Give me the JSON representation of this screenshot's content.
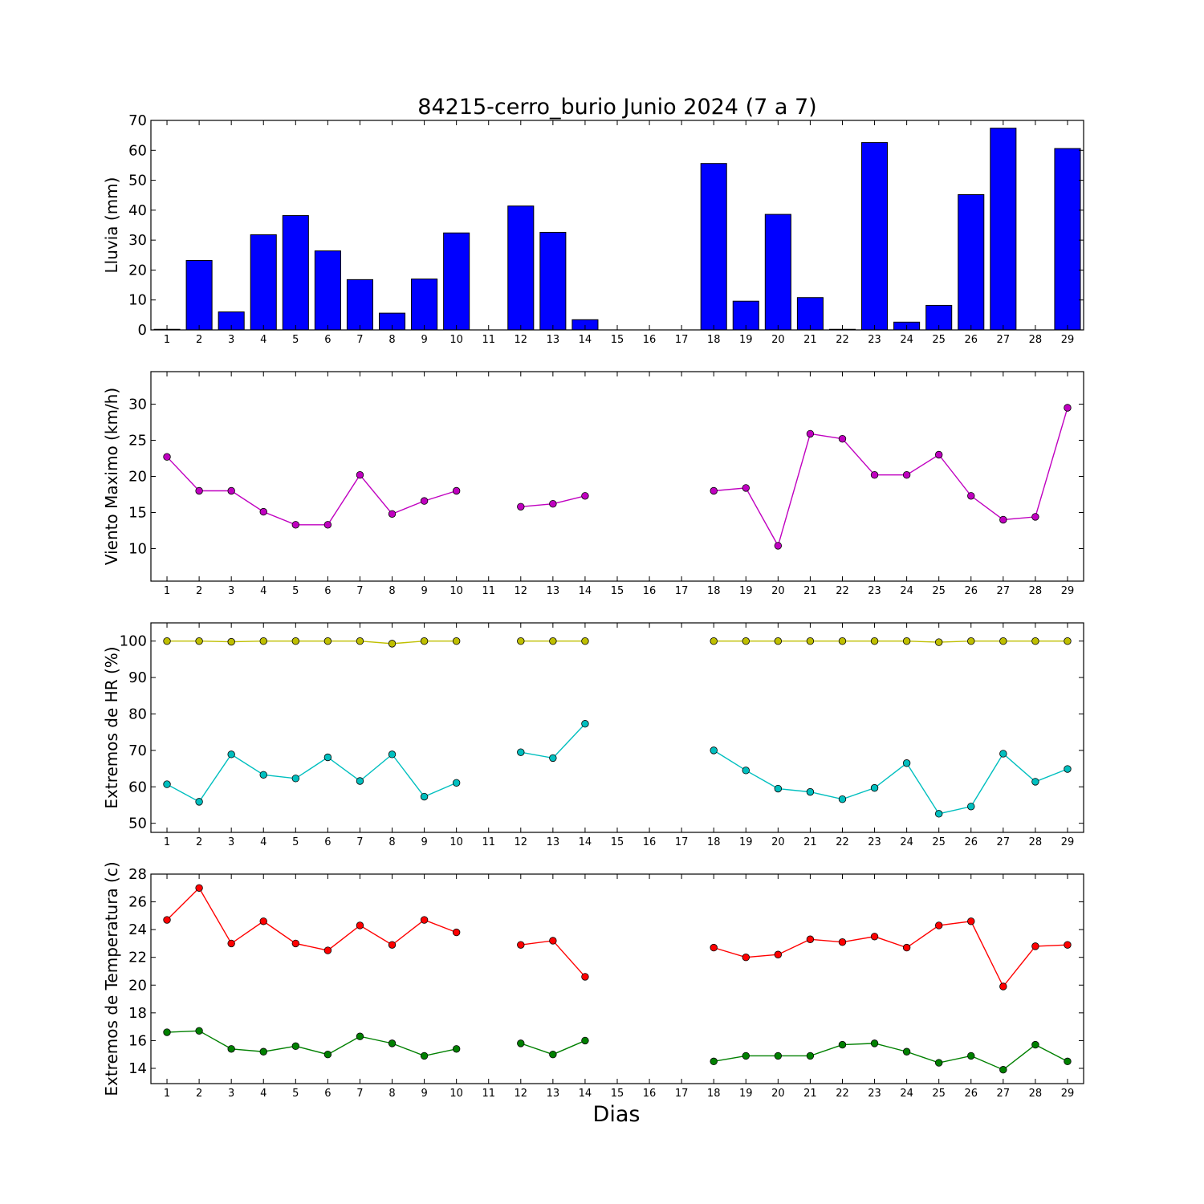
{
  "figure": {
    "title": "84215-cerro_burio Junio 2024  (7 a 7)",
    "xlabel": "Dias"
  },
  "chart_data": [
    {
      "type": "bar",
      "ylabel": "Lluvia (mm)",
      "ylim": [
        0,
        70
      ],
      "yticks": [
        0,
        10,
        20,
        30,
        40,
        50,
        60,
        70
      ],
      "x": [
        1,
        2,
        3,
        4,
        5,
        6,
        7,
        8,
        9,
        10,
        11,
        12,
        13,
        14,
        15,
        16,
        17,
        18,
        19,
        20,
        21,
        22,
        23,
        24,
        25,
        26,
        27,
        28,
        29
      ],
      "xticks": [
        "1",
        "2",
        "3",
        "4",
        "5",
        "6",
        "7",
        "8",
        "9",
        "10",
        "11",
        "12",
        "13",
        "14",
        "15",
        "16",
        "17",
        "18",
        "19",
        "20",
        "21",
        "22",
        "23",
        "24",
        "25",
        "26",
        "27",
        "28",
        "29"
      ],
      "series": [
        {
          "color": "#0000ff",
          "values": [
            0.2,
            23.2,
            6.0,
            31.8,
            38.2,
            26.4,
            16.8,
            5.6,
            17.0,
            32.4,
            0,
            41.4,
            32.6,
            3.4,
            0,
            0,
            0,
            55.6,
            9.6,
            38.6,
            10.8,
            0.2,
            62.6,
            2.6,
            8.2,
            45.2,
            67.4,
            0,
            60.6
          ]
        }
      ],
      "grid": false
    },
    {
      "type": "line",
      "ylabel": "Viento Maximo (km/h)",
      "ylim": [
        5.5,
        34.5
      ],
      "yticks": [
        10,
        15,
        20,
        25,
        30
      ],
      "x": [
        1,
        2,
        3,
        4,
        5,
        6,
        7,
        8,
        9,
        10,
        11,
        12,
        13,
        14,
        15,
        16,
        17,
        18,
        19,
        20,
        21,
        22,
        23,
        24,
        25,
        26,
        27,
        28,
        29
      ],
      "xticks": [
        "1",
        "2",
        "3",
        "4",
        "5",
        "6",
        "7",
        "8",
        "9",
        "10",
        "11",
        "12",
        "13",
        "14",
        "15",
        "16",
        "17",
        "18",
        "19",
        "20",
        "21",
        "22",
        "23",
        "24",
        "25",
        "26",
        "27",
        "28",
        "29"
      ],
      "series": [
        {
          "color": "#c000c0",
          "values": [
            22.7,
            18.0,
            18.0,
            15.1,
            13.3,
            13.3,
            20.2,
            14.8,
            16.6,
            18.0,
            null,
            15.8,
            16.2,
            17.3,
            null,
            null,
            null,
            18.0,
            18.4,
            10.4,
            25.9,
            25.2,
            20.2,
            20.2,
            23.0,
            17.3,
            14.0,
            14.4,
            29.5
          ]
        }
      ],
      "grid": false
    },
    {
      "type": "line",
      "ylabel": "Extremos de HR (%)",
      "ylim": [
        47.5,
        105
      ],
      "yticks": [
        50,
        60,
        70,
        80,
        90,
        100
      ],
      "x": [
        1,
        2,
        3,
        4,
        5,
        6,
        7,
        8,
        9,
        10,
        11,
        12,
        13,
        14,
        15,
        16,
        17,
        18,
        19,
        20,
        21,
        22,
        23,
        24,
        25,
        26,
        27,
        28,
        29
      ],
      "xticks": [
        "1",
        "2",
        "3",
        "4",
        "5",
        "6",
        "7",
        "8",
        "9",
        "10",
        "11",
        "12",
        "13",
        "14",
        "15",
        "16",
        "17",
        "18",
        "19",
        "20",
        "21",
        "22",
        "23",
        "24",
        "25",
        "26",
        "27",
        "28",
        "29"
      ],
      "series": [
        {
          "color": "#bfbf00",
          "values": [
            100,
            100,
            99.8,
            100,
            100,
            100,
            100,
            99.3,
            100,
            100,
            null,
            100,
            100,
            100,
            null,
            null,
            null,
            100,
            100,
            100,
            100,
            100,
            100,
            100,
            99.7,
            100,
            100,
            100,
            100
          ]
        },
        {
          "color": "#00bfbf",
          "values": [
            60.7,
            55.9,
            68.9,
            63.3,
            62.3,
            68.1,
            61.6,
            68.9,
            57.3,
            61.1,
            null,
            69.5,
            67.9,
            77.3,
            null,
            null,
            null,
            70.0,
            64.5,
            59.5,
            58.6,
            56.6,
            59.7,
            66.5,
            52.6,
            54.6,
            69.1,
            61.4,
            64.9
          ]
        }
      ],
      "grid": false
    },
    {
      "type": "line",
      "ylabel": "Extremos de Temperatura (c)",
      "ylim": [
        12.9,
        28
      ],
      "yticks": [
        14,
        16,
        18,
        20,
        22,
        24,
        26,
        28
      ],
      "x": [
        1,
        2,
        3,
        4,
        5,
        6,
        7,
        8,
        9,
        10,
        11,
        12,
        13,
        14,
        15,
        16,
        17,
        18,
        19,
        20,
        21,
        22,
        23,
        24,
        25,
        26,
        27,
        28,
        29
      ],
      "xticks": [
        "1",
        "2",
        "3",
        "4",
        "5",
        "6",
        "7",
        "8",
        "9",
        "10",
        "11",
        "12",
        "13",
        "14",
        "15",
        "16",
        "17",
        "18",
        "19",
        "20",
        "21",
        "22",
        "23",
        "24",
        "25",
        "26",
        "27",
        "28",
        "29"
      ],
      "series": [
        {
          "color": "#ff0000",
          "values": [
            24.7,
            27.0,
            23.0,
            24.6,
            23.0,
            22.5,
            24.3,
            22.9,
            24.7,
            23.8,
            null,
            22.9,
            23.2,
            20.6,
            null,
            null,
            null,
            22.7,
            22.0,
            22.2,
            23.3,
            23.1,
            23.5,
            22.7,
            24.3,
            24.6,
            19.9,
            22.8,
            22.9
          ]
        },
        {
          "color": "#008000",
          "values": [
            16.6,
            16.7,
            15.4,
            15.2,
            15.6,
            15.0,
            16.3,
            15.8,
            14.9,
            15.4,
            null,
            15.8,
            15.0,
            16.0,
            null,
            null,
            null,
            14.5,
            14.9,
            14.9,
            14.9,
            15.7,
            15.8,
            15.2,
            14.4,
            14.9,
            13.9,
            15.7,
            14.5
          ]
        }
      ],
      "grid": false
    }
  ]
}
